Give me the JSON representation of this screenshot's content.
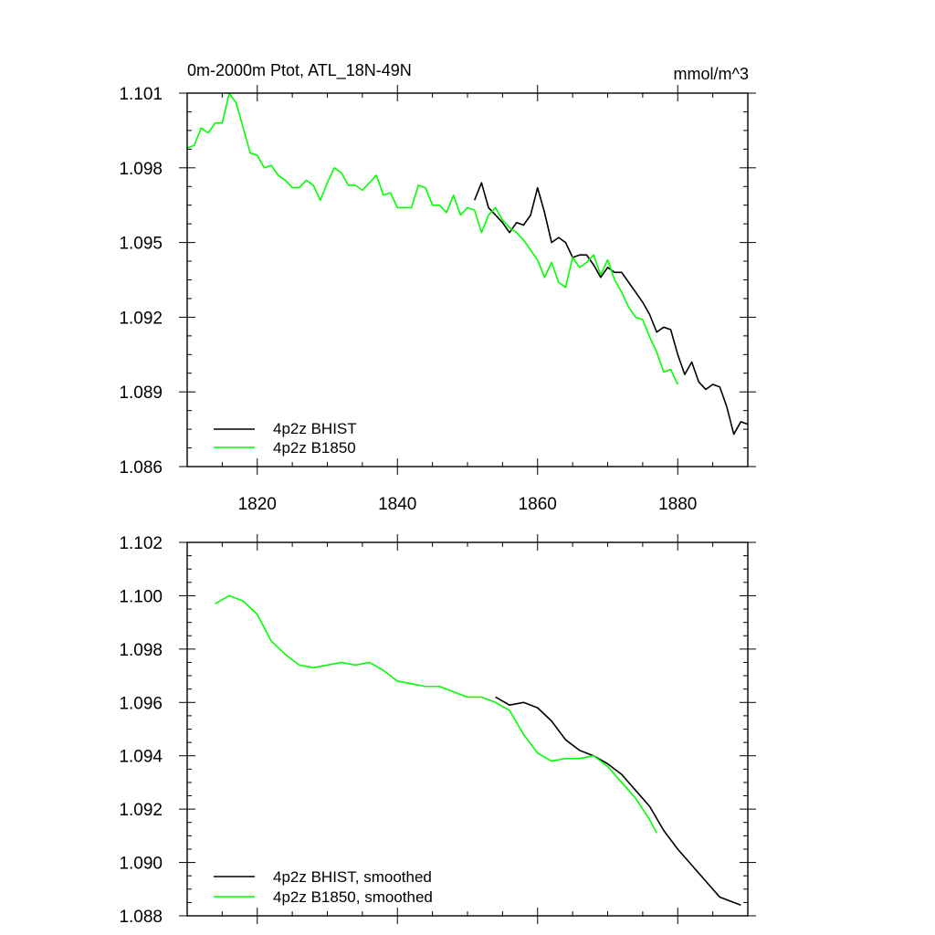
{
  "chart_data": [
    {
      "type": "line",
      "title": "0m-2000m Ptot, ATL_18N-49N",
      "units": "mmol/m^3",
      "xlim": [
        1810,
        1890
      ],
      "ylim": [
        1.086,
        1.101
      ],
      "x_ticks": [
        1820,
        1840,
        1860,
        1880
      ],
      "x_tick_labels": [
        "1820",
        "1840",
        "1860",
        "1880"
      ],
      "y_ticks": [
        1.086,
        1.089,
        1.092,
        1.095,
        1.098,
        1.101
      ],
      "y_tick_labels": [
        "1.086",
        "1.089",
        "1.092",
        "1.095",
        "1.098",
        "1.101"
      ],
      "legend_position": "bottom-left",
      "series": [
        {
          "name": "4p2z BHIST",
          "color": "#000000",
          "x": [
            1851,
            1852,
            1853,
            1854,
            1855,
            1856,
            1857,
            1858,
            1859,
            1860,
            1861,
            1862,
            1863,
            1864,
            1865,
            1866,
            1867,
            1868,
            1869,
            1870,
            1871,
            1872,
            1873,
            1874,
            1875,
            1876,
            1877,
            1878,
            1879,
            1880,
            1881,
            1882,
            1883,
            1884,
            1885,
            1886,
            1887,
            1888,
            1889,
            1890
          ],
          "y": [
            1.0967,
            1.0974,
            1.0964,
            1.0961,
            1.0958,
            1.0954,
            1.0958,
            1.0957,
            1.0961,
            1.0972,
            1.0962,
            1.095,
            1.0952,
            1.095,
            1.0944,
            1.0945,
            1.0945,
            1.0941,
            1.0936,
            1.094,
            1.0938,
            1.0938,
            1.0934,
            1.093,
            1.0926,
            1.0921,
            1.0914,
            1.0916,
            1.0915,
            1.0905,
            1.0897,
            1.0902,
            1.0894,
            1.0891,
            1.0893,
            1.0892,
            1.0884,
            1.0873,
            1.0878,
            1.0877
          ]
        },
        {
          "name": "4p2z B1850",
          "color": "#00ff00",
          "x": [
            1810,
            1811,
            1812,
            1813,
            1814,
            1815,
            1816,
            1817,
            1818,
            1819,
            1820,
            1821,
            1822,
            1823,
            1824,
            1825,
            1826,
            1827,
            1828,
            1829,
            1830,
            1831,
            1832,
            1833,
            1834,
            1835,
            1836,
            1837,
            1838,
            1839,
            1840,
            1841,
            1842,
            1843,
            1844,
            1845,
            1846,
            1847,
            1848,
            1849,
            1850,
            1851,
            1852,
            1853,
            1854,
            1855,
            1856,
            1857,
            1858,
            1859,
            1860,
            1861,
            1862,
            1863,
            1864,
            1865,
            1866,
            1867,
            1868,
            1869,
            1870,
            1871,
            1872,
            1873,
            1874,
            1875,
            1876,
            1877,
            1878,
            1879,
            1880
          ],
          "y": [
            1.0988,
            1.0989,
            1.0996,
            1.0994,
            1.0998,
            1.0998,
            1.101,
            1.1006,
            1.0996,
            1.0986,
            1.0985,
            1.098,
            1.0981,
            1.0977,
            1.0975,
            1.0972,
            1.0972,
            1.0975,
            1.0973,
            1.0967,
            1.0974,
            1.098,
            1.0978,
            1.0973,
            1.0973,
            1.0971,
            1.0974,
            1.0977,
            1.0969,
            1.097,
            1.0964,
            1.0964,
            1.0964,
            1.0973,
            1.0972,
            1.0965,
            1.0965,
            1.0962,
            1.0969,
            1.0961,
            1.0964,
            1.0963,
            1.0954,
            1.0961,
            1.0964,
            1.0959,
            1.0956,
            1.0954,
            1.0951,
            1.0947,
            1.0943,
            1.0936,
            1.0942,
            1.0934,
            1.0932,
            1.0944,
            1.094,
            1.0942,
            1.0945,
            1.0937,
            1.0943,
            1.0935,
            1.093,
            1.0924,
            1.092,
            1.0919,
            1.0912,
            1.0906,
            1.0898,
            1.0899,
            1.0893
          ]
        }
      ]
    },
    {
      "type": "line",
      "title": "",
      "xlim": [
        1810,
        1890
      ],
      "ylim": [
        1.088,
        1.102
      ],
      "x_ticks": [
        1820,
        1840,
        1860,
        1880
      ],
      "y_ticks": [
        1.088,
        1.09,
        1.092,
        1.094,
        1.096,
        1.098,
        1.1,
        1.102
      ],
      "y_tick_labels": [
        "1.088",
        "1.090",
        "1.092",
        "1.094",
        "1.096",
        "1.098",
        "1.100",
        "1.102"
      ],
      "legend_position": "bottom-left",
      "series": [
        {
          "name": "4p2z BHIST, smoothed",
          "color": "#000000",
          "x": [
            1854,
            1856,
            1858,
            1860,
            1862,
            1864,
            1866,
            1868,
            1870,
            1872,
            1874,
            1876,
            1878,
            1880,
            1882,
            1884,
            1886,
            1888,
            1889
          ],
          "y": [
            1.0962,
            1.0959,
            1.096,
            1.0958,
            1.0953,
            1.0946,
            1.0942,
            1.094,
            1.0937,
            1.0933,
            1.0927,
            1.0921,
            1.0912,
            1.0905,
            1.0899,
            1.0893,
            1.0887,
            1.0885,
            1.0884
          ]
        },
        {
          "name": "4p2z B1850, smoothed",
          "color": "#00ff00",
          "x": [
            1814,
            1816,
            1818,
            1820,
            1822,
            1824,
            1826,
            1828,
            1830,
            1832,
            1834,
            1836,
            1838,
            1840,
            1842,
            1844,
            1846,
            1848,
            1850,
            1852,
            1854,
            1856,
            1858,
            1860,
            1862,
            1864,
            1866,
            1868,
            1870,
            1872,
            1874,
            1876,
            1877
          ],
          "y": [
            1.0997,
            1.1,
            1.0998,
            1.0993,
            1.0983,
            1.0978,
            1.0974,
            1.0973,
            1.0974,
            1.0975,
            1.0974,
            1.0975,
            1.0972,
            1.0968,
            1.0967,
            1.0966,
            1.0966,
            1.0964,
            1.0962,
            1.0962,
            1.096,
            1.0957,
            1.0948,
            1.0941,
            1.0938,
            1.0939,
            1.0939,
            1.094,
            1.0936,
            1.093,
            1.0924,
            1.0916,
            1.0911
          ]
        }
      ]
    }
  ]
}
